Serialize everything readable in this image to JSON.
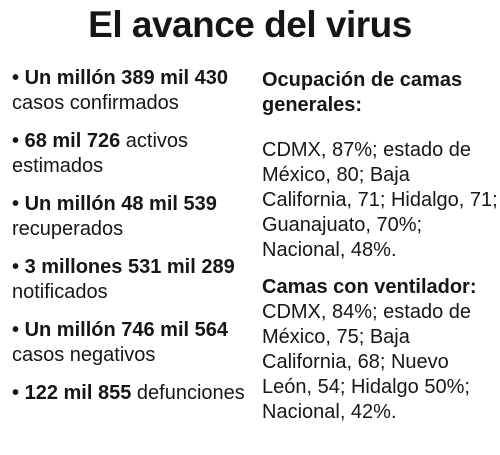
{
  "title": "El avance del virus",
  "stats": [
    {
      "value": "Un millón 389 mil 430",
      "label": "casos confirmados"
    },
    {
      "value": "68 mil 726",
      "label": "activos estimados"
    },
    {
      "value": "Un millón 48 mil 539",
      "label": "recuperados"
    },
    {
      "value": "3 millones 531 mil 289",
      "label": "notificados"
    },
    {
      "value": "Un millón 746 mil 564",
      "label": "casos negativos"
    },
    {
      "value": "122 mil 855",
      "label": "defunciones"
    }
  ],
  "beds_general": {
    "heading": "Ocupación de camas generales:",
    "text": "CDMX, 87%; estado de México, 80; Baja California, 71; Hidalgo, 71; Guanajuato, 70%; Nacional, 48%."
  },
  "beds_ventilator": {
    "heading": "Camas con ventilador:",
    "text": "CDMX, 84%; estado de México, 75; Baja California, 68; Nuevo León, 54; Hidalgo 50%; Nacional, 42%."
  }
}
